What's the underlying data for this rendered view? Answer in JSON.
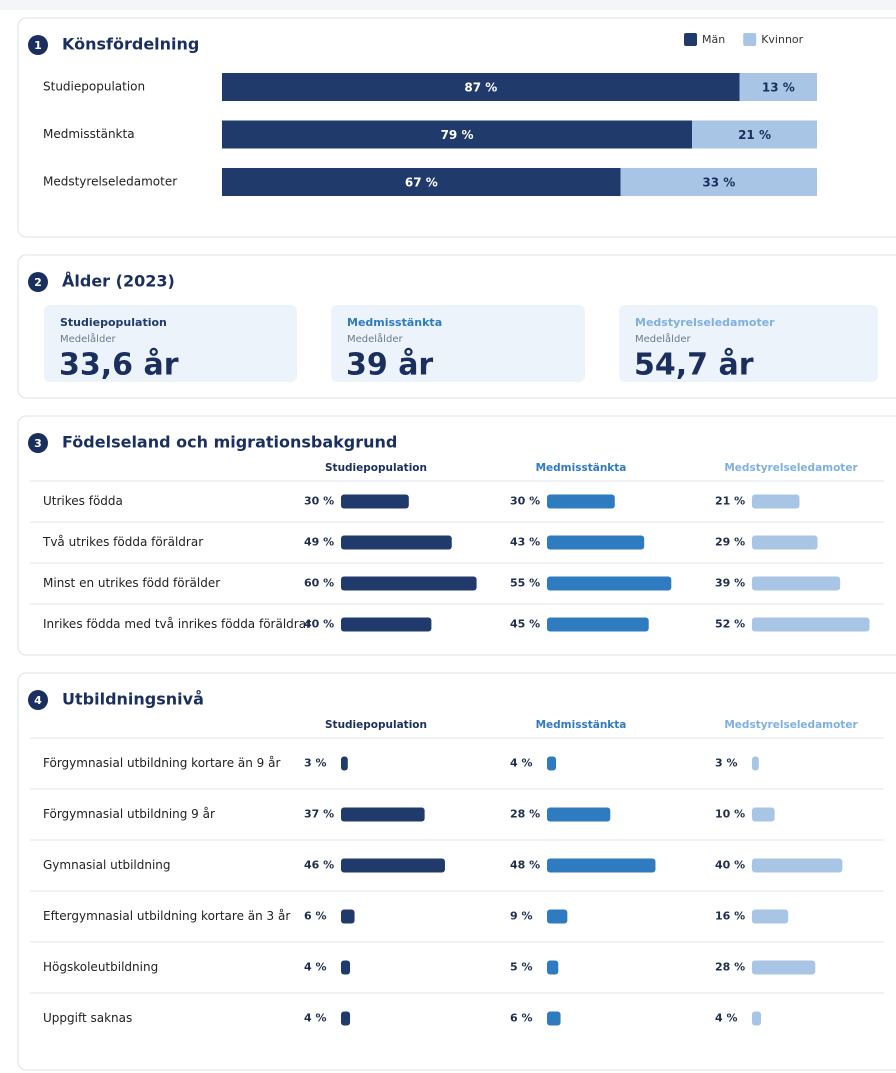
{
  "sections": [
    {
      "number": "1",
      "title": "Könsfördelning",
      "type": "stacked",
      "legend": [
        {
          "name": "Män",
          "color": "#1f3a6b"
        },
        {
          "name": "Kvinnor",
          "color": "#a9c5e6"
        }
      ],
      "rows": [
        {
          "label": "Studiepopulation",
          "values": [
            87,
            13
          ],
          "value_labels": [
            "87 %",
            "13 %"
          ]
        },
        {
          "label": "Medmisstänkta",
          "values": [
            79,
            21
          ],
          "value_labels": [
            "79 %",
            "21 %"
          ]
        },
        {
          "label": "Medstyrelseledamoter",
          "values": [
            67,
            33
          ],
          "value_labels": [
            "67 %",
            "33 %"
          ]
        }
      ]
    },
    {
      "number": "2",
      "title": "Ålder (2023)",
      "type": "cards",
      "cards": [
        {
          "title": "Studiepopulation",
          "subtitle": "Medelålder",
          "value": "33,6 år",
          "color": "#1f3a6b"
        },
        {
          "title": "Medmisstänkta",
          "subtitle": "Medelålder",
          "value": "39 år",
          "color": "#2e7bbf"
        },
        {
          "title": "Medstyrelseledamoter",
          "subtitle": "Medelålder",
          "value": "54,7 år",
          "color": "#7fb0e0"
        }
      ]
    },
    {
      "number": "3",
      "title": "Födelseland och migrationsbakgrund",
      "type": "table",
      "columns": [
        {
          "name": "Studiepopulation",
          "color": "#1f3a6b"
        },
        {
          "name": "Medmisstänkta",
          "color": "#2e7bbf"
        },
        {
          "name": "Medstyrelseledamoter",
          "color": "#a9c5e6"
        }
      ],
      "rows": [
        {
          "label": "Utrikes födda",
          "values": [
            30,
            30,
            21
          ],
          "value_labels": [
            "30 %",
            "30 %",
            "21 %"
          ]
        },
        {
          "label": "Två utrikes födda föräldrar",
          "values": [
            49,
            43,
            29
          ],
          "value_labels": [
            "49 %",
            "43 %",
            "29 %"
          ]
        },
        {
          "label": "Minst en utrikes född förälder",
          "values": [
            60,
            55,
            39
          ],
          "value_labels": [
            "60 %",
            "55 %",
            "39 %"
          ]
        },
        {
          "label": "Inrikes födda med två inrikes födda föräldrar",
          "values": [
            40,
            45,
            52
          ],
          "value_labels": [
            "40 %",
            "45 %",
            "52 %"
          ]
        }
      ]
    },
    {
      "number": "4",
      "title": "Utbildningsnivå",
      "type": "table",
      "columns": [
        {
          "name": "Studiepopulation",
          "color": "#1f3a6b"
        },
        {
          "name": "Medmisstänkta",
          "color": "#2e7bbf"
        },
        {
          "name": "Medstyrelseledamoter",
          "color": "#a9c5e6"
        }
      ],
      "rows": [
        {
          "label": "Förgymnasial utbildning kortare än 9 år",
          "values": [
            3,
            4,
            3
          ],
          "value_labels": [
            "3 %",
            "4 %",
            "3 %"
          ]
        },
        {
          "label": "Förgymnasial utbildning 9 år",
          "values": [
            37,
            28,
            10
          ],
          "value_labels": [
            "37 %",
            "28 %",
            "10 %"
          ]
        },
        {
          "label": "Gymnasial utbildning",
          "values": [
            46,
            48,
            40
          ],
          "value_labels": [
            "46 %",
            "48 %",
            "40 %"
          ]
        },
        {
          "label": "Eftergymnasial utbildning kortare än 3 år",
          "values": [
            6,
            9,
            16
          ],
          "value_labels": [
            "6 %",
            "9 %",
            "16 %"
          ]
        },
        {
          "label": "Högskoleutbildning",
          "values": [
            4,
            5,
            28
          ],
          "value_labels": [
            "4 %",
            "5 %",
            "28 %"
          ]
        },
        {
          "label": "Uppgift saknas",
          "values": [
            4,
            6,
            4
          ],
          "value_labels": [
            "4 %",
            "6 %",
            "4 %"
          ]
        }
      ]
    }
  ]
}
